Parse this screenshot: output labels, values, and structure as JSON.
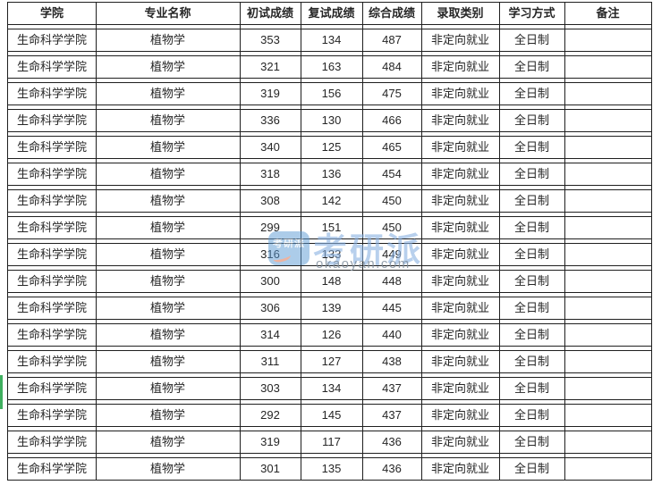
{
  "table": {
    "headers": [
      "学院",
      "专业名称",
      "初试成绩",
      "复试成绩",
      "综合成绩",
      "录取类别",
      "学习方式",
      "备注"
    ],
    "rows": [
      {
        "college": "生命科学学院",
        "major": "植物学",
        "initial_score": "353",
        "retest_score": "134",
        "composite_score": "487",
        "admission_category": "非定向就业",
        "study_mode": "全日制",
        "note": ""
      },
      {
        "college": "生命科学学院",
        "major": "植物学",
        "initial_score": "321",
        "retest_score": "163",
        "composite_score": "484",
        "admission_category": "非定向就业",
        "study_mode": "全日制",
        "note": ""
      },
      {
        "college": "生命科学学院",
        "major": "植物学",
        "initial_score": "319",
        "retest_score": "156",
        "composite_score": "475",
        "admission_category": "非定向就业",
        "study_mode": "全日制",
        "note": ""
      },
      {
        "college": "生命科学学院",
        "major": "植物学",
        "initial_score": "336",
        "retest_score": "130",
        "composite_score": "466",
        "admission_category": "非定向就业",
        "study_mode": "全日制",
        "note": ""
      },
      {
        "college": "生命科学学院",
        "major": "植物学",
        "initial_score": "340",
        "retest_score": "125",
        "composite_score": "465",
        "admission_category": "非定向就业",
        "study_mode": "全日制",
        "note": ""
      },
      {
        "college": "生命科学学院",
        "major": "植物学",
        "initial_score": "318",
        "retest_score": "136",
        "composite_score": "454",
        "admission_category": "非定向就业",
        "study_mode": "全日制",
        "note": ""
      },
      {
        "college": "生命科学学院",
        "major": "植物学",
        "initial_score": "308",
        "retest_score": "142",
        "composite_score": "450",
        "admission_category": "非定向就业",
        "study_mode": "全日制",
        "note": ""
      },
      {
        "college": "生命科学学院",
        "major": "植物学",
        "initial_score": "299",
        "retest_score": "151",
        "composite_score": "450",
        "admission_category": "非定向就业",
        "study_mode": "全日制",
        "note": ""
      },
      {
        "college": "生命科学学院",
        "major": "植物学",
        "initial_score": "316",
        "retest_score": "133",
        "composite_score": "449",
        "admission_category": "非定向就业",
        "study_mode": "全日制",
        "note": ""
      },
      {
        "college": "生命科学学院",
        "major": "植物学",
        "initial_score": "300",
        "retest_score": "148",
        "composite_score": "448",
        "admission_category": "非定向就业",
        "study_mode": "全日制",
        "note": ""
      },
      {
        "college": "生命科学学院",
        "major": "植物学",
        "initial_score": "306",
        "retest_score": "139",
        "composite_score": "445",
        "admission_category": "非定向就业",
        "study_mode": "全日制",
        "note": ""
      },
      {
        "college": "生命科学学院",
        "major": "植物学",
        "initial_score": "314",
        "retest_score": "126",
        "composite_score": "440",
        "admission_category": "非定向就业",
        "study_mode": "全日制",
        "note": ""
      },
      {
        "college": "生命科学学院",
        "major": "植物学",
        "initial_score": "311",
        "retest_score": "127",
        "composite_score": "438",
        "admission_category": "非定向就业",
        "study_mode": "全日制",
        "note": ""
      },
      {
        "college": "生命科学学院",
        "major": "植物学",
        "initial_score": "303",
        "retest_score": "134",
        "composite_score": "437",
        "admission_category": "非定向就业",
        "study_mode": "全日制",
        "note": ""
      },
      {
        "college": "生命科学学院",
        "major": "植物学",
        "initial_score": "292",
        "retest_score": "145",
        "composite_score": "437",
        "admission_category": "非定向就业",
        "study_mode": "全日制",
        "note": ""
      },
      {
        "college": "生命科学学院",
        "major": "植物学",
        "initial_score": "319",
        "retest_score": "117",
        "composite_score": "436",
        "admission_category": "非定向就业",
        "study_mode": "全日制",
        "note": ""
      },
      {
        "college": "生命科学学院",
        "major": "植物学",
        "initial_score": "301",
        "retest_score": "135",
        "composite_score": "436",
        "admission_category": "非定向就业",
        "study_mode": "全日制",
        "note": ""
      }
    ]
  },
  "watermark": {
    "logo_text": "考研派",
    "brand_text": "考研派",
    "site_url": "okaoyan.com"
  },
  "colors": {
    "border": "#1f1f1f",
    "text": "#262626",
    "row_marker_green": "#3faf5f",
    "watermark_blue": "#5b9bd5",
    "watermark_text_blue": "#8ab2e2",
    "watermark_url_gray": "#7d8c9b"
  }
}
